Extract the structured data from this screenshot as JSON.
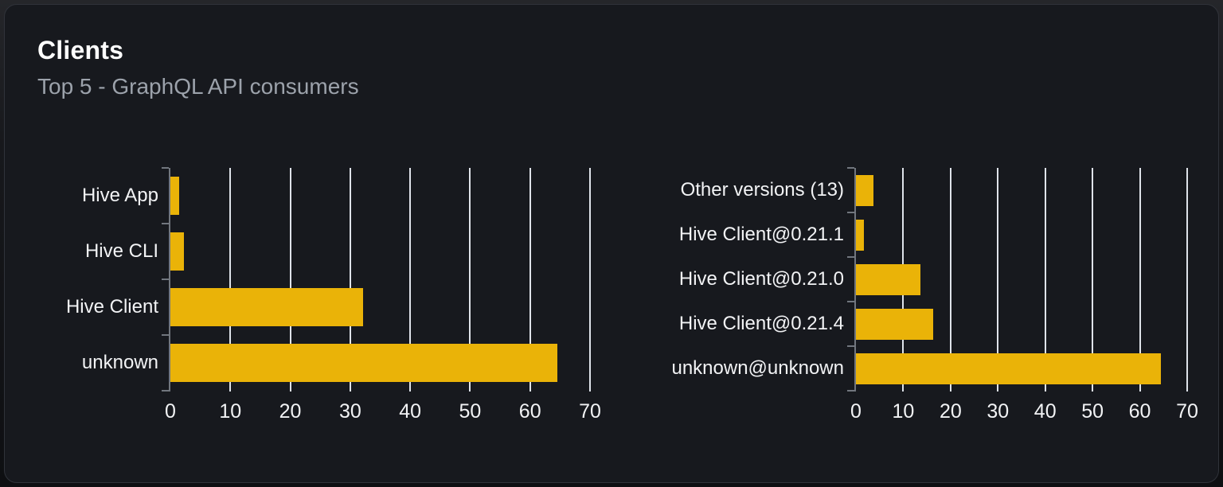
{
  "page": {
    "title": "Clients",
    "subtitle": "Top 5 - GraphQL API consumers"
  },
  "colors": {
    "bar": "#eab308",
    "gridline": "#dfe3ea",
    "axis": "#71767e",
    "title_text": "#ffffff",
    "subtitle_text": "#9ca2ab",
    "label_text": "#f2f3f5",
    "card_bg": "#17191e",
    "card_border": "#30333a"
  },
  "chart_data": [
    {
      "type": "bar",
      "name": "clients-by-name",
      "orientation": "horizontal",
      "categories": [
        "Hive App",
        "Hive CLI",
        "Hive Client",
        "unknown"
      ],
      "values": [
        1.4,
        2.2,
        32.1,
        64.5
      ],
      "xlim": [
        0,
        70
      ],
      "xticks": [
        0,
        10,
        20,
        30,
        40,
        50,
        60,
        70
      ],
      "grid": true,
      "legend": false,
      "bar_color": "#eab308"
    },
    {
      "type": "bar",
      "name": "clients-by-version",
      "orientation": "horizontal",
      "categories": [
        "Other versions (13)",
        "Hive Client@0.21.1",
        "Hive Client@0.21.0",
        "Hive Client@0.21.4",
        "unknown@unknown"
      ],
      "values": [
        3.7,
        1.7,
        13.6,
        16.3,
        64.4
      ],
      "xlim": [
        0,
        70
      ],
      "xticks": [
        0,
        10,
        20,
        30,
        40,
        50,
        60,
        70
      ],
      "grid": true,
      "legend": false,
      "bar_color": "#eab308"
    }
  ]
}
